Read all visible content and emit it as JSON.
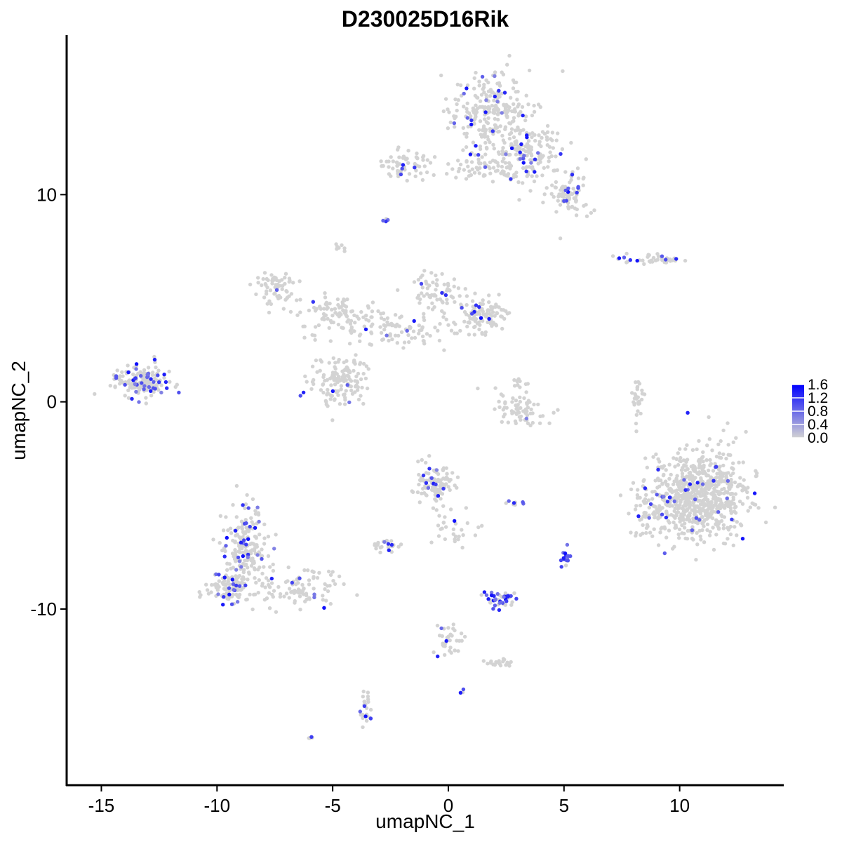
{
  "chart_data": {
    "type": "scatter",
    "title": "D230025D16Rik",
    "xlabel": "umapNC_1",
    "ylabel": "umapNC_2",
    "xlim": [
      -16.5,
      14.5
    ],
    "ylim": [
      -18.5,
      17.7
    ],
    "x_ticks": [
      -15,
      -10,
      -5,
      0,
      5,
      10
    ],
    "x_tick_labels": [
      "-15",
      "-10",
      "-5",
      "0",
      "5",
      "10"
    ],
    "y_ticks": [
      -10,
      0,
      10
    ],
    "y_tick_labels": [
      "-10",
      "0",
      "10"
    ],
    "grid": false,
    "legend_position": "right",
    "color_scale": {
      "min": 0.0,
      "max": 1.6,
      "low_color": "#d3d3d3",
      "high_color": "#0000ff",
      "ticks": [
        0.0,
        0.4,
        0.8,
        1.2,
        1.6
      ],
      "tick_labels": [
        "0.0",
        "0.4",
        "0.8",
        "1.2",
        "1.6"
      ]
    },
    "clusters": [
      {
        "cx": 1.8,
        "cy": 14.0,
        "sx": 1.1,
        "sy": 1.3,
        "n": 260,
        "expressed_fraction": 0.08
      },
      {
        "cx": 3.5,
        "cy": 12.0,
        "sx": 1.0,
        "sy": 1.0,
        "n": 150,
        "expressed_fraction": 0.08
      },
      {
        "cx": 5.1,
        "cy": 10.0,
        "sx": 0.6,
        "sy": 0.7,
        "n": 90,
        "expressed_fraction": 0.08
      },
      {
        "cx": 1.6,
        "cy": 11.3,
        "sx": 1.2,
        "sy": 0.4,
        "n": 60,
        "expressed_fraction": 0.06
      },
      {
        "cx": -2.0,
        "cy": 11.4,
        "sx": 0.8,
        "sy": 0.5,
        "n": 60,
        "expressed_fraction": 0.05
      },
      {
        "cx": 8.8,
        "cy": 6.9,
        "sx": 1.0,
        "sy": 0.15,
        "n": 40,
        "expressed_fraction": 0.18
      },
      {
        "cx": -7.5,
        "cy": 5.5,
        "sx": 0.6,
        "sy": 0.6,
        "n": 60,
        "expressed_fraction": 0.05
      },
      {
        "cx": -4.6,
        "cy": 4.1,
        "sx": 1.4,
        "sy": 0.7,
        "n": 110,
        "expressed_fraction": 0.02
      },
      {
        "cx": -0.5,
        "cy": 5.3,
        "sx": 0.6,
        "sy": 0.8,
        "n": 70,
        "expressed_fraction": 0.05
      },
      {
        "cx": 1.5,
        "cy": 4.2,
        "sx": 0.8,
        "sy": 0.5,
        "n": 110,
        "expressed_fraction": 0.08
      },
      {
        "cx": -2.0,
        "cy": 3.4,
        "sx": 1.3,
        "sy": 0.5,
        "n": 70,
        "expressed_fraction": 0.05
      },
      {
        "cx": -4.8,
        "cy": 1.0,
        "sx": 0.8,
        "sy": 0.8,
        "n": 140,
        "expressed_fraction": 0.04
      },
      {
        "cx": -13.3,
        "cy": 1.0,
        "sx": 0.8,
        "sy": 0.55,
        "n": 170,
        "expressed_fraction": 0.14
      },
      {
        "cx": 3.3,
        "cy": -0.3,
        "sx": 0.8,
        "sy": 0.6,
        "n": 70,
        "expressed_fraction": 0.06
      },
      {
        "cx": 8.2,
        "cy": 0.2,
        "sx": 0.15,
        "sy": 0.8,
        "n": 30,
        "expressed_fraction": 0.0
      },
      {
        "cx": 10.9,
        "cy": -4.5,
        "sx": 1.3,
        "sy": 1.4,
        "n": 700,
        "expressed_fraction": 0.05
      },
      {
        "cx": 8.7,
        "cy": -5.2,
        "sx": 0.6,
        "sy": 1.0,
        "n": 80,
        "expressed_fraction": 0.05
      },
      {
        "cx": -0.5,
        "cy": -3.9,
        "sx": 0.6,
        "sy": 0.6,
        "n": 110,
        "expressed_fraction": 0.07
      },
      {
        "cx": -8.8,
        "cy": -7.0,
        "sx": 0.6,
        "sy": 1.3,
        "n": 200,
        "expressed_fraction": 0.15
      },
      {
        "cx": -9.5,
        "cy": -9.0,
        "sx": 0.6,
        "sy": 0.6,
        "n": 100,
        "expressed_fraction": 0.12
      },
      {
        "cx": -6.5,
        "cy": -9.0,
        "sx": 1.4,
        "sy": 0.6,
        "n": 100,
        "expressed_fraction": 0.1
      },
      {
        "cx": 2.2,
        "cy": -9.5,
        "sx": 0.4,
        "sy": 0.3,
        "n": 45,
        "expressed_fraction": 0.55
      },
      {
        "cx": -2.6,
        "cy": -6.9,
        "sx": 0.35,
        "sy": 0.2,
        "n": 25,
        "expressed_fraction": 0.3
      },
      {
        "cx": 0.0,
        "cy": -6.0,
        "sx": 1.0,
        "sy": 0.6,
        "n": 30,
        "expressed_fraction": 0.05
      },
      {
        "cx": 5.1,
        "cy": -7.5,
        "sx": 0.12,
        "sy": 0.3,
        "n": 15,
        "expressed_fraction": 0.6
      },
      {
        "cx": 0.0,
        "cy": -11.5,
        "sx": 0.4,
        "sy": 0.6,
        "n": 35,
        "expressed_fraction": 0.05
      },
      {
        "cx": 2.2,
        "cy": -12.6,
        "sx": 0.4,
        "sy": 0.2,
        "n": 20,
        "expressed_fraction": 0.05
      },
      {
        "cx": -3.6,
        "cy": -15.0,
        "sx": 0.2,
        "sy": 0.6,
        "n": 25,
        "expressed_fraction": 0.1
      },
      {
        "cx": -2.7,
        "cy": 8.8,
        "sx": 0.1,
        "sy": 0.1,
        "n": 4,
        "expressed_fraction": 0.5
      },
      {
        "cx": -4.7,
        "cy": 7.4,
        "sx": 0.15,
        "sy": 0.15,
        "n": 8,
        "expressed_fraction": 0.0
      },
      {
        "cx": -6.0,
        "cy": -16.2,
        "sx": 0.1,
        "sy": 0.08,
        "n": 4,
        "expressed_fraction": 0.7
      },
      {
        "cx": 2.9,
        "cy": -4.9,
        "sx": 0.25,
        "sy": 0.1,
        "n": 8,
        "expressed_fraction": 0.4
      },
      {
        "cx": 0.6,
        "cy": -14.0,
        "sx": 0.08,
        "sy": 0.08,
        "n": 3,
        "expressed_fraction": 0.6
      },
      {
        "cx": 3.1,
        "cy": 1.0,
        "sx": 0.2,
        "sy": 0.2,
        "n": 10,
        "expressed_fraction": 0.1
      }
    ]
  }
}
